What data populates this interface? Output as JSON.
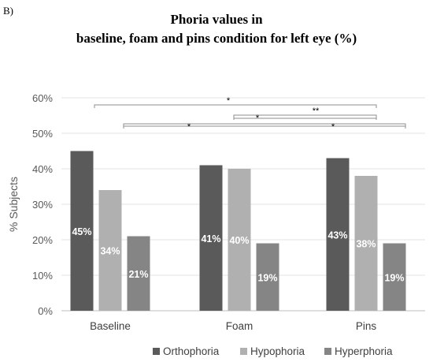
{
  "panel_label": "B)",
  "chart_data": {
    "type": "bar",
    "title_line1": "Phoria values in",
    "title_line2": "baseline, foam and pins condition for left eye (%)",
    "xlabel": "",
    "ylabel": "% Subjects",
    "ylim": [
      0,
      60
    ],
    "yticks": [
      "0%",
      "10%",
      "20%",
      "30%",
      "40%",
      "50%",
      "60%"
    ],
    "grid": true,
    "legend_position": "bottom",
    "categories": [
      "Baseline",
      "Foam",
      "Pins"
    ],
    "series": [
      {
        "name": "Orthophoria",
        "color": "#5a5a5a",
        "values": [
          45,
          41,
          43
        ],
        "labels": [
          "45%",
          "41%",
          "43%"
        ]
      },
      {
        "name": "Hypophoria",
        "color": "#b0b0b0",
        "values": [
          34,
          40,
          38
        ],
        "labels": [
          "34%",
          "40%",
          "38%"
        ]
      },
      {
        "name": "Hyperphoria",
        "color": "#858585",
        "values": [
          21,
          19,
          19
        ],
        "labels": [
          "21%",
          "19%",
          "19%"
        ]
      }
    ],
    "significance": [
      {
        "from": "Baseline",
        "to": "Pins",
        "label": "*"
      },
      {
        "from": "Foam",
        "to": "Pins",
        "label": "**"
      },
      {
        "from": "Baseline",
        "to": "Pins",
        "label": "* *"
      }
    ]
  }
}
